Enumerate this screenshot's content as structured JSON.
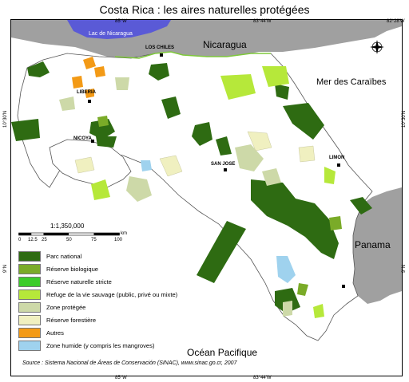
{
  "title": "Costa Rica : les aires naturelles protégées",
  "coords": {
    "top": [
      "85°W",
      "83°44'W",
      "82°28'W"
    ],
    "bottom": [
      "85°W",
      "83°44'W"
    ],
    "left": [
      "10°30'N",
      "9°N"
    ],
    "right": [
      "10°30'N",
      "9°N"
    ]
  },
  "labels": {
    "lac_nicaragua": "Lac de Nicaragua",
    "los_chiles": "LOS CHILES",
    "nicaragua": "Nicaragua",
    "mer_caraibes": "Mer des Caraïbes",
    "liberia": "LIBERIA",
    "nicoya": "NICOYA",
    "san_jose": "SAN JOSE",
    "limon": "LIMON",
    "panama": "Panama",
    "ocean_pacifique": "Océan Pacifique"
  },
  "scale": {
    "ratio": "1:1,350,000",
    "ticks": [
      "0",
      "12.5",
      "25",
      "50",
      "75",
      "100"
    ],
    "unit": "km"
  },
  "legend": [
    {
      "label": "Parc national",
      "color": "#2e6b12"
    },
    {
      "label": "Réserve biologique",
      "color": "#7aab28"
    },
    {
      "label": "Réserve naturelle stricte",
      "color": "#3ccc2a"
    },
    {
      "label": "Refuge de la vie sauvage (public, privé ou mixte)",
      "color": "#b6e83a"
    },
    {
      "label": "Zone protégée",
      "color": "#cdd9a8"
    },
    {
      "label": "Réserve forestière",
      "color": "#f0f0c0"
    },
    {
      "label": "Autres",
      "color": "#f39a16"
    },
    {
      "label": "Zone humide (y compris les mangroves)",
      "color": "#9fd2ee"
    }
  ],
  "colors": {
    "neighbor_land": "#a0a0a0",
    "lake": "#5a5ad6",
    "sea": "#ffffff",
    "border": "#000000"
  },
  "source": "Source : Sistema Nacional de Áreas de Conservación (SINAC), www.sinac.go.cr, 2007"
}
